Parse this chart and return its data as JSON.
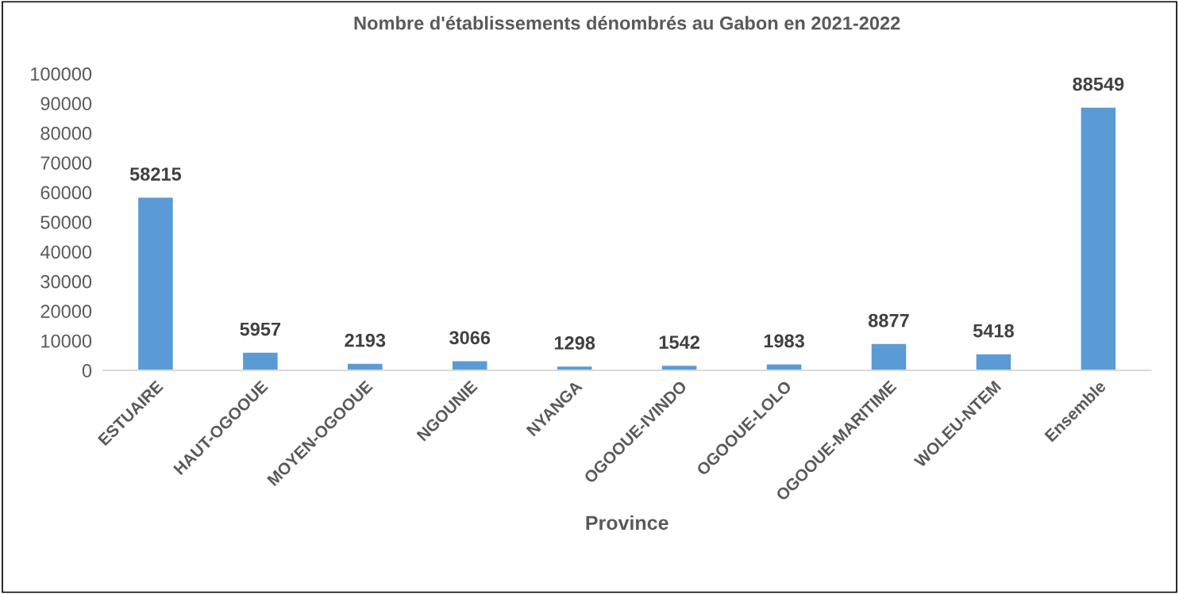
{
  "chart_data": {
    "type": "bar",
    "title": "Nombre d'établissements dénombrés au Gabon en 2021-2022",
    "xlabel": "Province",
    "categories": [
      "ESTUAIRE",
      "HAUT-OGOOUE",
      "MOYEN-OGOOUE",
      "NGOUNIE",
      "NYANGA",
      "OGOOUE-IVINDO",
      "OGOOUE-LOLO",
      "OGOOUE-MARITIME",
      "WOLEU-NTEM",
      "Ensemble"
    ],
    "values": [
      58215,
      5957,
      2193,
      3066,
      1298,
      1542,
      1983,
      8877,
      5418,
      88549
    ],
    "color": "#5b9bd5",
    "ylim": [
      0,
      100000
    ],
    "yticks": [
      0,
      10000,
      20000,
      30000,
      40000,
      50000,
      60000,
      70000,
      80000,
      90000,
      100000
    ],
    "grid": false,
    "data_labels": true
  }
}
